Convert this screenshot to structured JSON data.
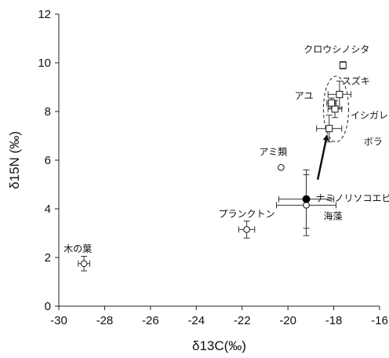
{
  "chart_data": {
    "type": "scatter",
    "title": "",
    "xlabel": "δ13C(‰)",
    "ylabel": "δ15N (‰)",
    "xlim": [
      -30,
      -16
    ],
    "ylim": [
      0,
      12
    ],
    "x_ticks": [
      -30,
      -28,
      -26,
      -24,
      -22,
      -20,
      -18,
      -16
    ],
    "y_ticks": [
      0,
      2,
      4,
      6,
      8,
      10,
      12
    ],
    "grid": false,
    "points": [
      {
        "label": "木の葉",
        "x": -28.9,
        "y": 1.75,
        "xerr": 0.25,
        "yerr": 0.3,
        "marker": "circle-open"
      },
      {
        "label": "プランクトン",
        "x": -21.8,
        "y": 3.15,
        "xerr": 0.35,
        "yerr": 0.35,
        "marker": "circle-open"
      },
      {
        "label": "海藻",
        "x": -19.2,
        "y": 4.15,
        "xerr": 1.3,
        "yerr": 1.25,
        "marker": "circle-open"
      },
      {
        "label": "ナミノリソコエビ",
        "x": -19.2,
        "y": 4.4,
        "xerr": 1.2,
        "yerr": 1.2,
        "marker": "circle-filled"
      },
      {
        "label": "アミ類",
        "x": -20.3,
        "y": 5.7,
        "xerr": 0,
        "yerr": 0,
        "marker": "circle-open"
      },
      {
        "label": "ボラ",
        "x": -18.2,
        "y": 7.3,
        "xerr": 0.55,
        "yerr": 0.55,
        "marker": "square-open"
      },
      {
        "label": "イシガレイ",
        "x": -17.95,
        "y": 8.1,
        "xerr": 0.3,
        "yerr": 0.35,
        "marker": "square-open"
      },
      {
        "label": "アユ",
        "x": -18.1,
        "y": 8.35,
        "xerr": 0.2,
        "yerr": 0.2,
        "marker": "square-open"
      },
      {
        "label": "スズキ",
        "x": -17.75,
        "y": 8.7,
        "xerr": 0.5,
        "yerr": 0.55,
        "marker": "square-open"
      },
      {
        "label": "クロウシノシタ",
        "x": -17.6,
        "y": 9.9,
        "xerr": 0.1,
        "yerr": 0.15,
        "marker": "square-open"
      }
    ],
    "annotations": [
      {
        "type": "ellipse",
        "cx": -17.9,
        "cy": 8.1,
        "rx": 0.55,
        "ry": 1.35
      },
      {
        "type": "arrow",
        "from": [
          -18.7,
          5.2
        ],
        "to": [
          -18.3,
          7.0
        ]
      }
    ]
  }
}
